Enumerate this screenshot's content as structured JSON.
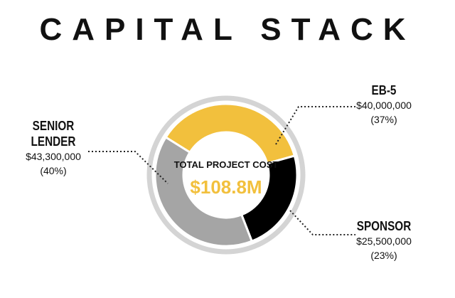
{
  "chart_data": {
    "type": "donut",
    "title": "CAPITAL STACK",
    "center_label": "TOTAL PROJECT COST",
    "total": 108800000,
    "total_label": "$108.8M",
    "categories": [
      "EB-5",
      "SPONSOR",
      "SENIOR LENDER"
    ],
    "values": [
      40000000,
      25500000,
      43300000
    ],
    "value_labels": [
      "$40,000,000",
      "$25,500,000",
      "$43,300,000"
    ],
    "shares": [
      37,
      23,
      40
    ],
    "share_labels": [
      "(37%)",
      "(23%)",
      "(40%)"
    ],
    "colors": [
      "#f2c03d",
      "#000000",
      "#a5a5a5"
    ]
  }
}
